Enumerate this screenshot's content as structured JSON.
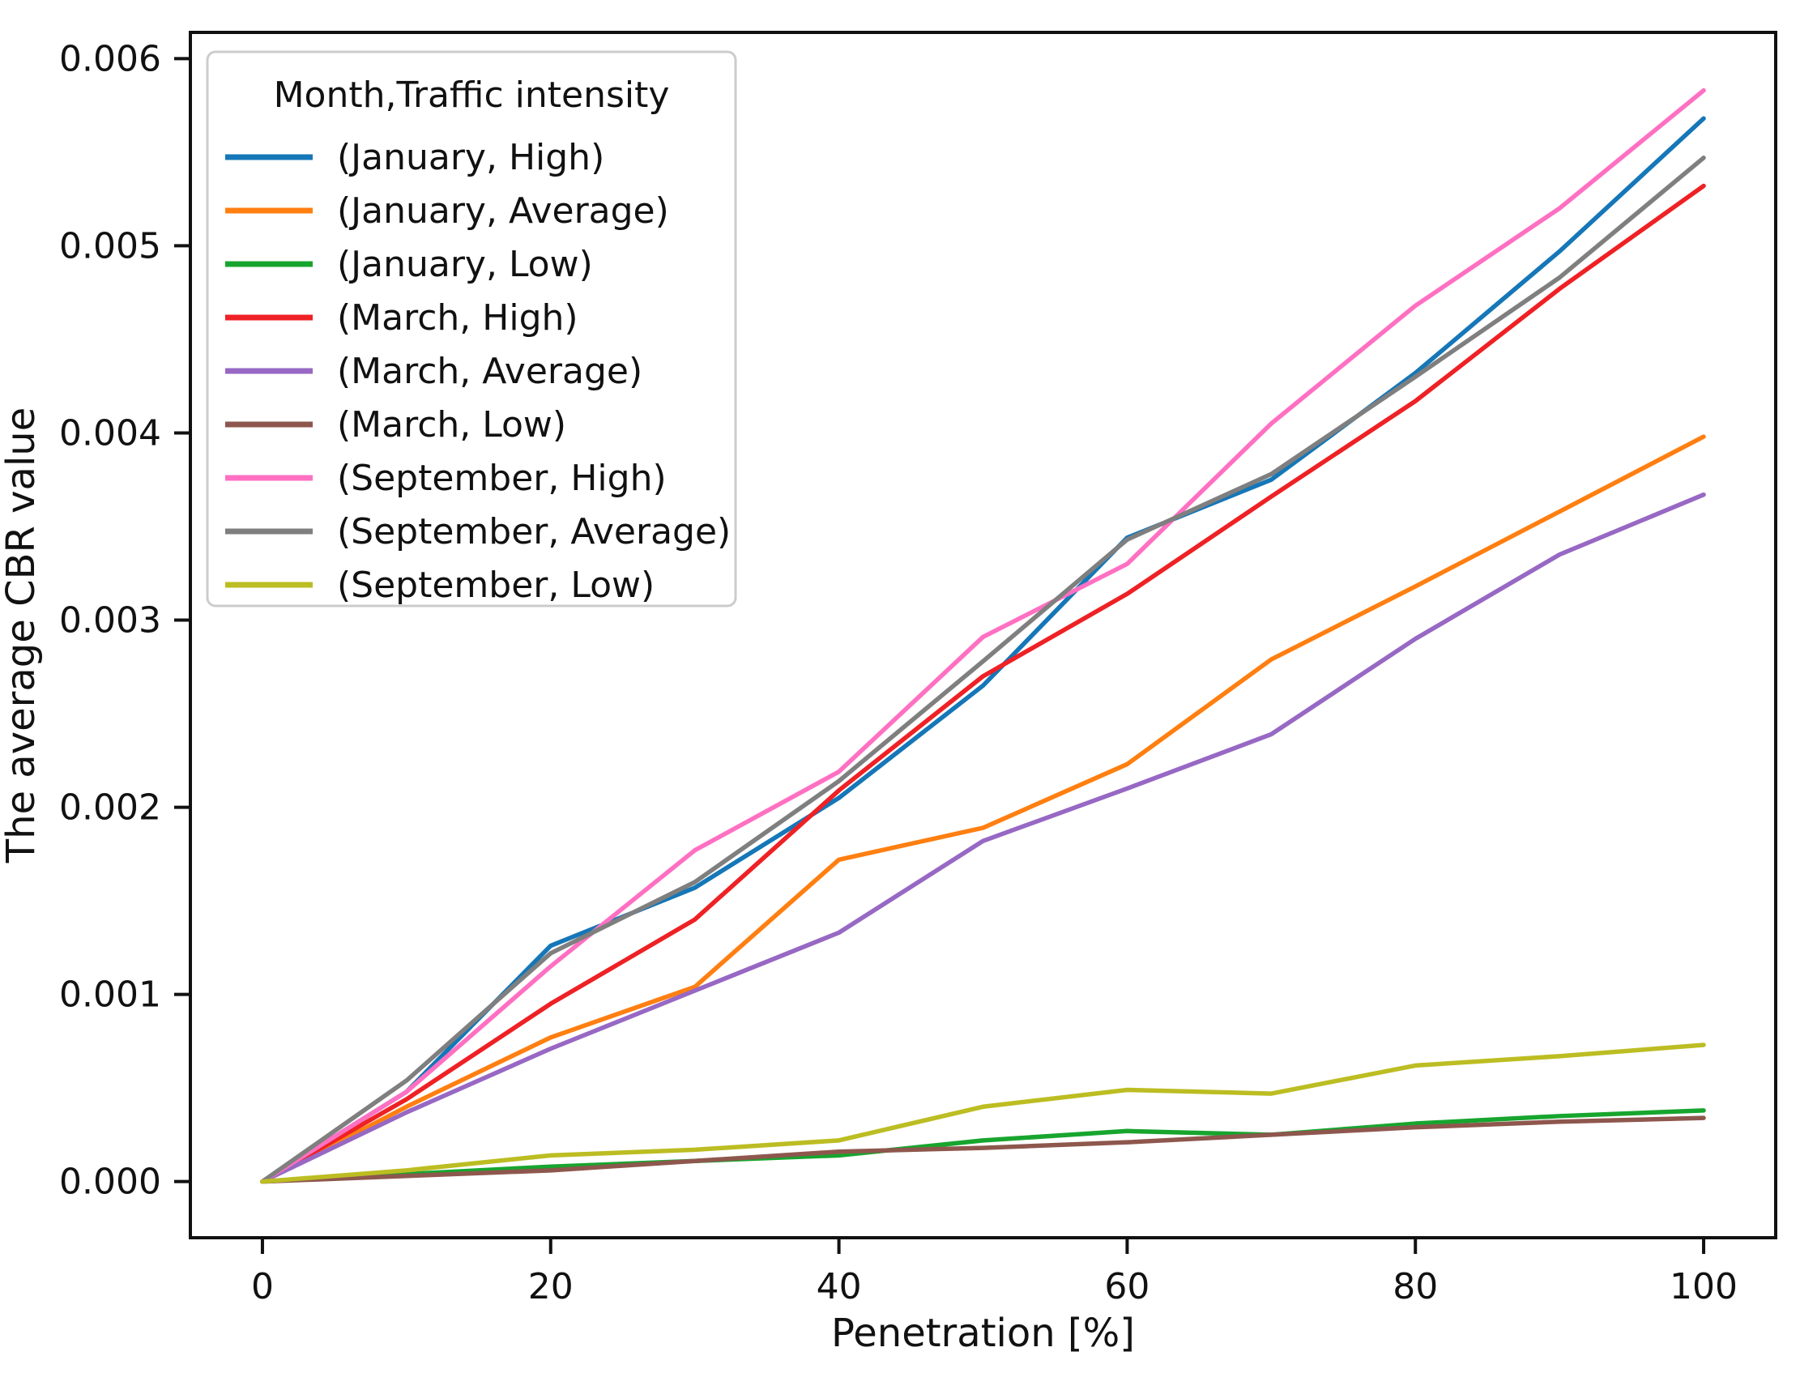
{
  "chart_data": {
    "type": "line",
    "title": "",
    "xlabel": "Penetration [%]",
    "ylabel": "The average CBR value",
    "x": [
      0,
      10,
      20,
      30,
      40,
      50,
      60,
      70,
      80,
      90,
      100
    ],
    "xlim": [
      -5,
      105
    ],
    "ylim": [
      -0.0003,
      0.00614
    ],
    "grid": false,
    "frame_color": "#111111",
    "background_color": "#ffffff",
    "xticks": {
      "values": [
        0,
        20,
        40,
        60,
        80,
        100
      ],
      "labels": [
        "0",
        "20",
        "40",
        "60",
        "80",
        "100"
      ]
    },
    "yticks": {
      "values": [
        0.0,
        0.001,
        0.002,
        0.003,
        0.004,
        0.005,
        0.006
      ],
      "labels": [
        "0.000",
        "0.001",
        "0.002",
        "0.003",
        "0.004",
        "0.005",
        "0.006"
      ]
    },
    "legend": {
      "title": "Month,Traffic intensity",
      "position": "upper left",
      "border_color": "#cccccc",
      "background_color": "#ffffff"
    },
    "series": [
      {
        "label": "(January, High)",
        "color": "#1577b8",
        "values": [
          0,
          0.00048,
          0.00126,
          0.00157,
          0.00205,
          0.00265,
          0.00344,
          0.00375,
          0.00432,
          0.00497,
          0.00568
        ]
      },
      {
        "label": "(January, Average)",
        "color": "#ff7f11",
        "values": [
          0,
          0.0004,
          0.00077,
          0.00104,
          0.00172,
          0.00189,
          0.00223,
          0.00279,
          0.00318,
          0.00358,
          0.00398
        ]
      },
      {
        "label": "(January, Low)",
        "color": "#17a52e",
        "values": [
          0,
          4e-05,
          8e-05,
          0.00011,
          0.00014,
          0.00022,
          0.00027,
          0.00025,
          0.00031,
          0.00035,
          0.00038
        ]
      },
      {
        "label": "(March, High)",
        "color": "#ee2125",
        "values": [
          0,
          0.00044,
          0.00095,
          0.0014,
          0.00209,
          0.0027,
          0.00314,
          0.00366,
          0.00417,
          0.00477,
          0.00532
        ]
      },
      {
        "label": "(March, Average)",
        "color": "#9768c4",
        "values": [
          0,
          0.00037,
          0.00071,
          0.00102,
          0.00133,
          0.00182,
          0.0021,
          0.00239,
          0.0029,
          0.00335,
          0.00367
        ]
      },
      {
        "label": "(March, Low)",
        "color": "#8e574d",
        "values": [
          0,
          3e-05,
          6e-05,
          0.00011,
          0.00016,
          0.00018,
          0.00021,
          0.00025,
          0.00029,
          0.00032,
          0.00034
        ]
      },
      {
        "label": "(September, High)",
        "color": "#ff70c2",
        "values": [
          0,
          0.00048,
          0.00115,
          0.00177,
          0.00219,
          0.00291,
          0.0033,
          0.00405,
          0.00468,
          0.0052,
          0.00583
        ]
      },
      {
        "label": "(September, Average)",
        "color": "#7f7f7f",
        "values": [
          0,
          0.00054,
          0.00122,
          0.0016,
          0.00214,
          0.00278,
          0.00343,
          0.00378,
          0.0043,
          0.00483,
          0.00547
        ]
      },
      {
        "label": "(September, Low)",
        "color": "#bcbd22",
        "values": [
          0,
          6e-05,
          0.00014,
          0.00017,
          0.00022,
          0.0004,
          0.00049,
          0.00047,
          0.00062,
          0.00067,
          0.00073
        ]
      }
    ]
  }
}
